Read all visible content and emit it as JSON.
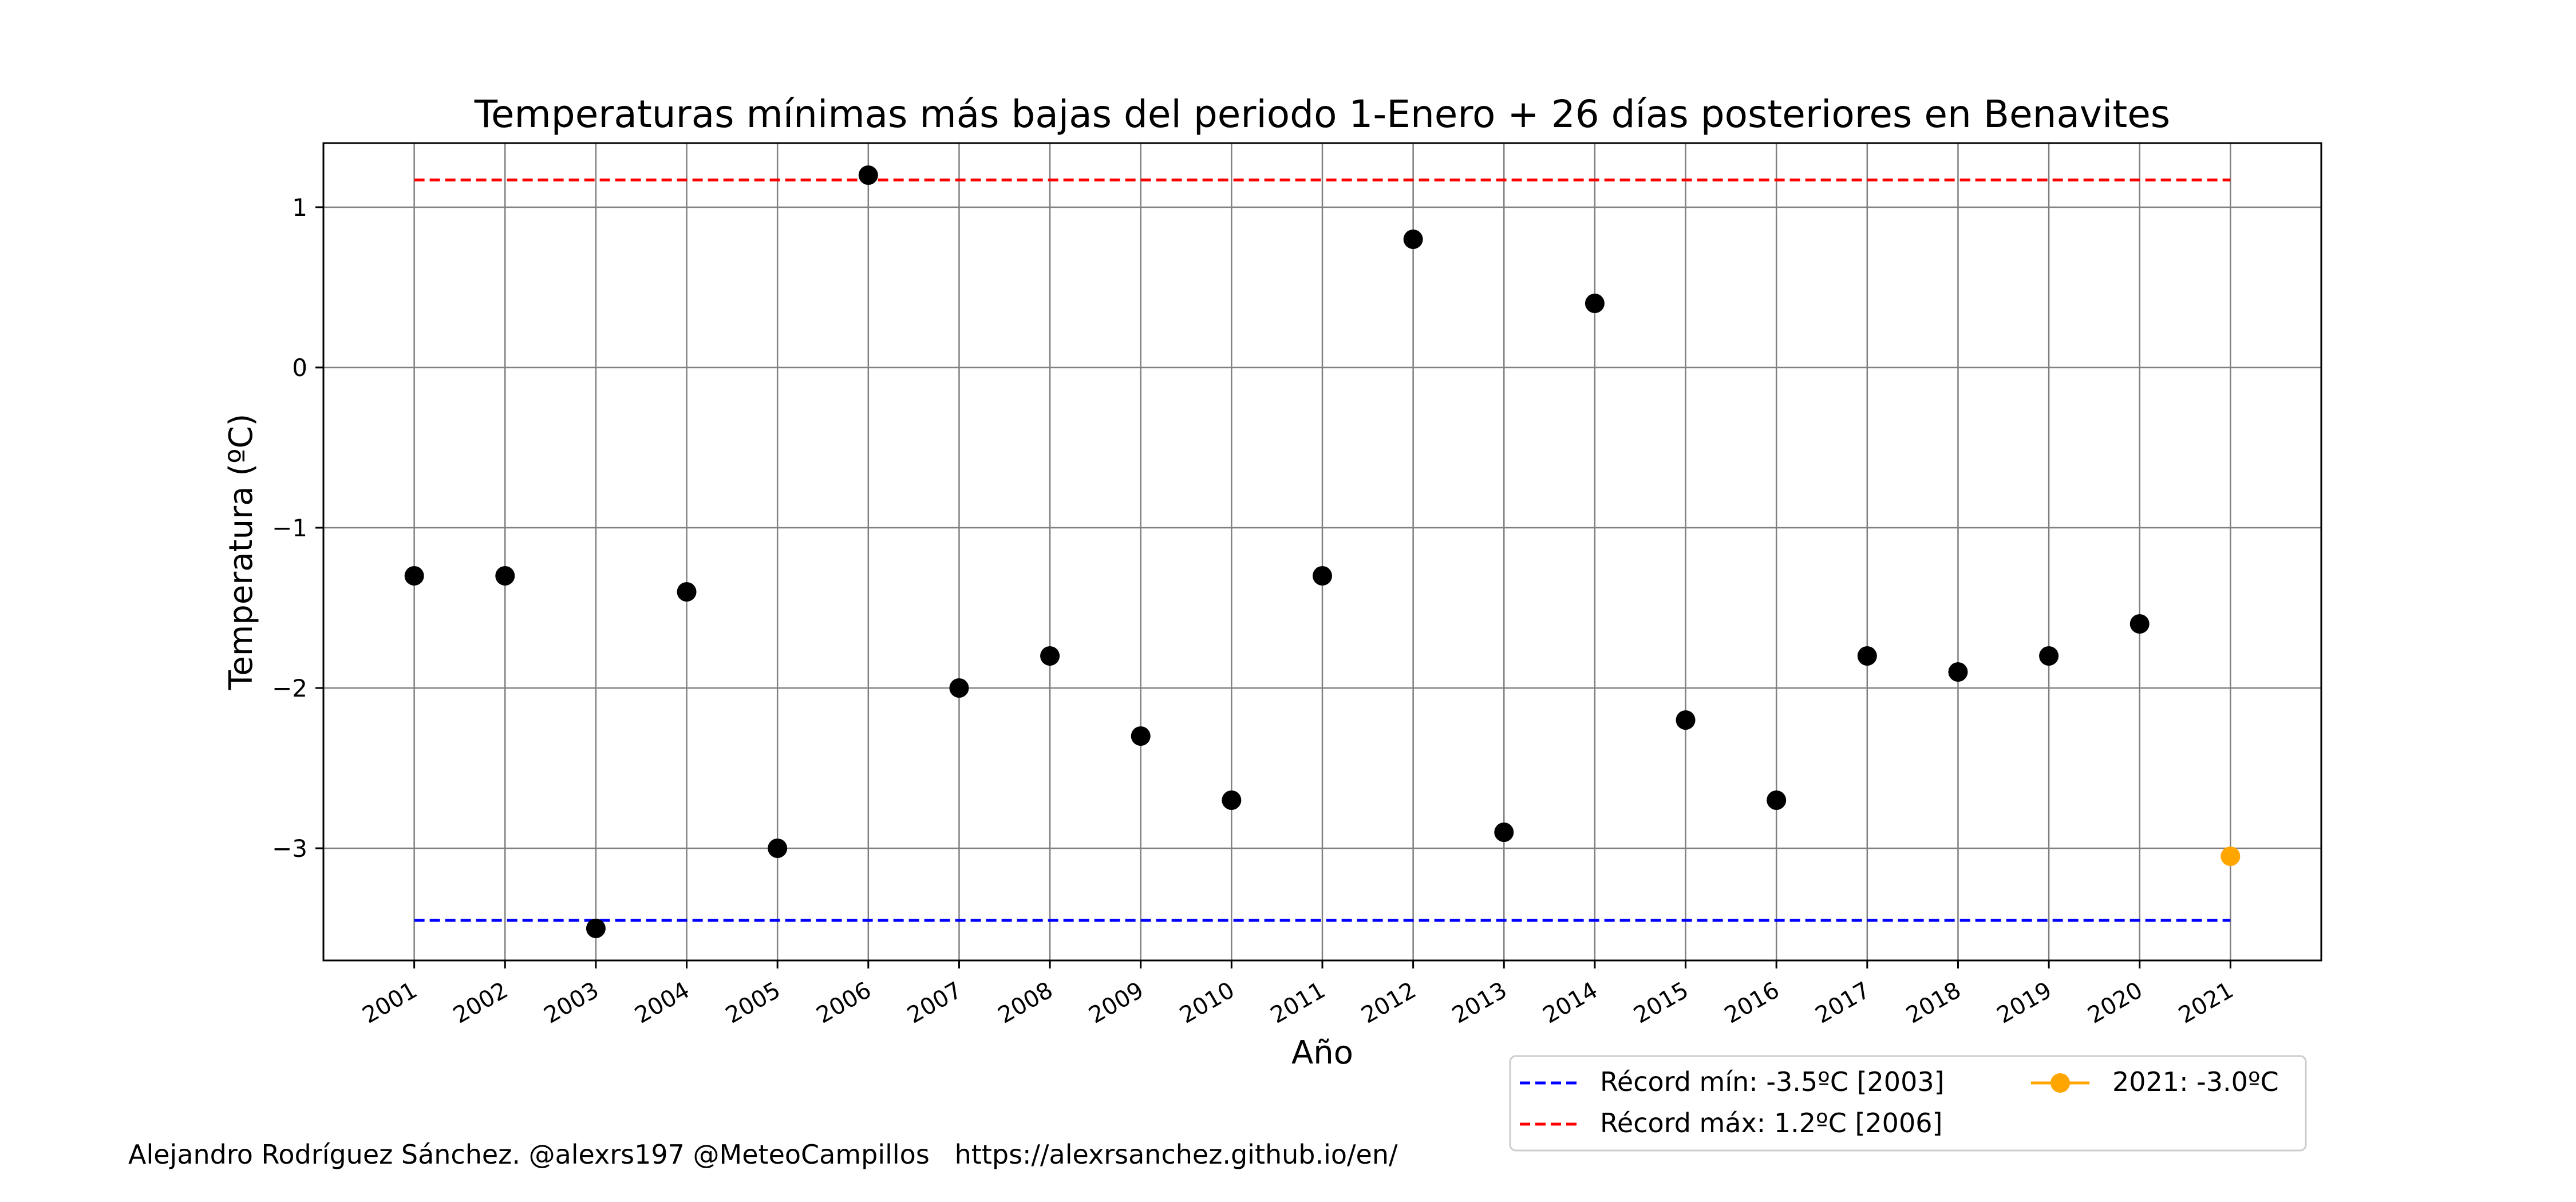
{
  "chart_data": {
    "type": "scatter",
    "title": "Temperaturas mínimas más bajas del periodo 1-Enero + 26 días posteriores en Benavites",
    "xlabel": "Año",
    "ylabel": "Temperatura (ºC)",
    "categories": [
      "2001",
      "2002",
      "2003",
      "2004",
      "2005",
      "2006",
      "2007",
      "2008",
      "2009",
      "2010",
      "2011",
      "2012",
      "2013",
      "2014",
      "2015",
      "2016",
      "2017",
      "2018",
      "2019",
      "2020",
      "2021"
    ],
    "x": [
      2001,
      2002,
      2003,
      2004,
      2005,
      2006,
      2007,
      2008,
      2009,
      2010,
      2011,
      2012,
      2013,
      2014,
      2015,
      2016,
      2017,
      2018,
      2019,
      2020,
      2021
    ],
    "series": [
      {
        "color": "#000000",
        "x": [
          2001,
          2002,
          2003,
          2004,
          2005,
          2006,
          2007,
          2008,
          2009,
          2010,
          2011,
          2012,
          2013,
          2014,
          2015,
          2016,
          2017,
          2018,
          2019,
          2020
        ],
        "values": [
          -1.3,
          -1.3,
          -3.5,
          -1.4,
          -3.0,
          1.2,
          -2.0,
          -1.8,
          -2.3,
          -2.7,
          -1.3,
          0.8,
          -2.9,
          0.4,
          -2.2,
          -2.7,
          -1.8,
          -1.9,
          -1.8,
          -1.6
        ]
      },
      {
        "name": "2021: -3.0ºC",
        "color": "#ffa500",
        "x": [
          2021
        ],
        "values": [
          -3.05
        ]
      }
    ],
    "reference_lines": [
      {
        "name": "Récord mín: -3.5ºC [2003]",
        "value": -3.45,
        "color": "#0000ff",
        "style": "dashed"
      },
      {
        "name": "Récord máx: 1.2ºC [2006]",
        "value": 1.17,
        "color": "#ff0000",
        "style": "dashed"
      }
    ],
    "yticks": [
      -3,
      -2,
      -1,
      0,
      1
    ],
    "ytick_labels": [
      "−3",
      "−2",
      "−1",
      "0",
      "1"
    ],
    "ylim": [
      -3.7,
      1.4
    ],
    "xlim": [
      2000,
      2022
    ],
    "grid": true,
    "legend_position": "bottom-right, below plot"
  },
  "footer": {
    "credit": "Alejandro Rodríguez Sánchez. @alexrs197 @MeteoCampillos   https://alexrsanchez.github.io/en/"
  }
}
